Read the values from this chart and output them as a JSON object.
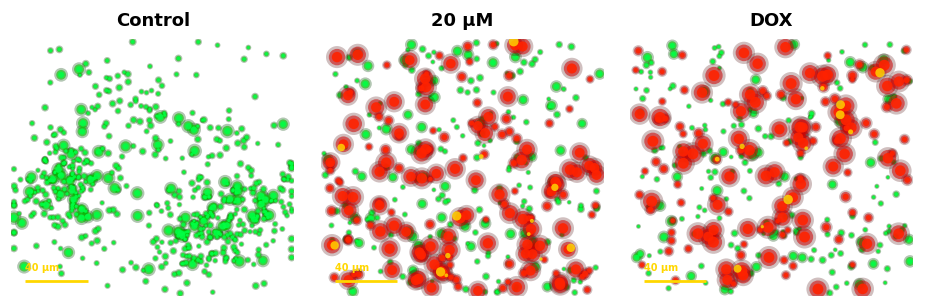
{
  "titles": [
    "Control",
    "20 μM",
    "DOX"
  ],
  "title_fontsize": 13,
  "title_fontweight": "bold",
  "bg_color": "#000000",
  "fig_bg_color": "#ffffff",
  "scalebar_label": "40 μm",
  "scalebar_color": "#FFD700",
  "scalebar_text_color": "#FFD700",
  "panels": [
    {
      "green_count": 500,
      "red_count": 0,
      "green_size_small": 6,
      "green_size_large": 25,
      "red_size_small": 0,
      "red_size_large": 0,
      "seed": 42,
      "cluster": true
    },
    {
      "green_count": 200,
      "red_count": 160,
      "green_size_small": 5,
      "green_size_large": 18,
      "red_size_small": 12,
      "red_size_large": 50,
      "seed": 123,
      "cluster": false
    },
    {
      "green_count": 180,
      "red_count": 140,
      "green_size_small": 5,
      "green_size_large": 18,
      "red_size_small": 12,
      "red_size_large": 55,
      "seed": 77,
      "cluster": false
    }
  ]
}
